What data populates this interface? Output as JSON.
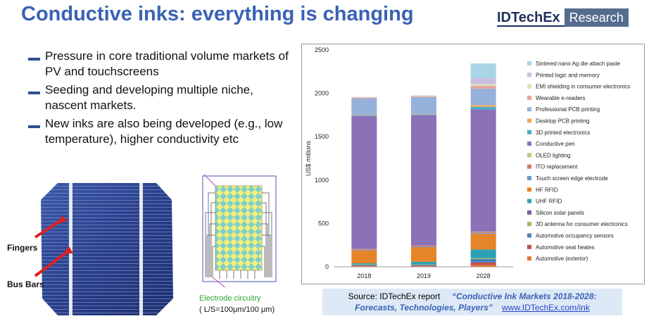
{
  "page": {
    "title": "Conductive inks: everything is changing",
    "logo_left": "IDTechEx",
    "logo_right": "Research"
  },
  "bullets": [
    "Pressure in core traditional volume markets of PV and touchscreens",
    "Seeding and developing multiple niche, nascent markets.",
    "New inks are also being developed (e.g., low temperature), higher conductivity etc"
  ],
  "solar_cell": {
    "label_fingers": "Fingers",
    "label_bus_bars": "Bus Bars"
  },
  "electrode": {
    "caption": "Electrode circuitry",
    "subcaption": "( L/S=100μm/100 μm)"
  },
  "source": {
    "prefix": "Source: IDTechEx report",
    "report_title_1": "“Conductive Ink Markets 2018-2028:",
    "report_title_2": "Forecasts, Technologies, Players”",
    "url": "www.IDTechEx.com/ink"
  },
  "chart_data": {
    "type": "bar",
    "stacked": true,
    "categories": [
      "2018",
      "2019",
      "2028"
    ],
    "ylabel": "US$ millions",
    "ylim": [
      0,
      2500
    ],
    "yticks": [
      "0",
      "500",
      "1000",
      "1500",
      "2000",
      "2500"
    ],
    "grid": false,
    "legend_position": "right",
    "series": [
      {
        "name": "Automotive (exterior)",
        "color": "#e07b39",
        "values": [
          5,
          5,
          20
        ]
      },
      {
        "name": "Automotive seat heates",
        "color": "#c0504d",
        "values": [
          8,
          8,
          30
        ]
      },
      {
        "name": "Automotive occupancy sensors",
        "color": "#4f81bd",
        "values": [
          10,
          10,
          40
        ]
      },
      {
        "name": "3D antenna for consumer electronics",
        "color": "#9bbb59",
        "values": [
          5,
          5,
          10
        ]
      },
      {
        "name": "Silicon solar panels",
        "color": "#7b5ea7",
        "values": [
          0,
          0,
          0
        ]
      },
      {
        "name": "UHF RFID",
        "color": "#2ca1b5",
        "values": [
          12,
          30,
          100
        ]
      },
      {
        "name": "HF RFID",
        "color": "#e6842a",
        "values": [
          150,
          170,
          180
        ]
      },
      {
        "name": "Touch screen edge electrode",
        "color": "#6a97d0",
        "values": [
          10,
          10,
          10
        ]
      },
      {
        "name": "ITO replacement",
        "color": "#d9776f",
        "values": [
          10,
          10,
          10
        ]
      },
      {
        "name": "OLED lighting",
        "color": "#b3cc7a",
        "values": [
          0,
          0,
          5
        ]
      },
      {
        "name": "Conductive pen",
        "color": "#8b71b8",
        "values": [
          1530,
          1500,
          1410
        ]
      },
      {
        "name": "3D printed electronics",
        "color": "#4aaec4",
        "values": [
          5,
          5,
          30
        ]
      },
      {
        "name": "Desktop PCB printing",
        "color": "#f2a75a",
        "values": [
          5,
          5,
          20
        ]
      },
      {
        "name": "Professional PCB printing",
        "color": "#96b1dc",
        "values": [
          190,
          200,
          190
        ]
      },
      {
        "name": "Wearable e-readers",
        "color": "#e8a09a",
        "values": [
          8,
          8,
          30
        ]
      },
      {
        "name": "EMI shielding in consumer electronics",
        "color": "#d7e4b4",
        "values": [
          5,
          5,
          20
        ]
      },
      {
        "name": "Printed logic and memory",
        "color": "#cbbfe0",
        "values": [
          5,
          5,
          70
        ]
      },
      {
        "name": "Sintered nano Ag die attach paste",
        "color": "#a9d5e6",
        "values": [
          0,
          0,
          170
        ]
      }
    ]
  }
}
